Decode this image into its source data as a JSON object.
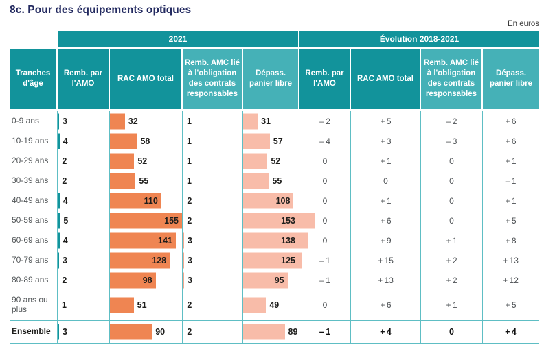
{
  "title": "8c. Pour des équipements optiques",
  "unit_label": "En euros",
  "colors": {
    "header_dark": "#12939b",
    "header_light": "#45b1b7",
    "bar_amo": "#12939b",
    "bar_rac": "#ef8552",
    "bar_amc": "#f3a88f",
    "bar_depass": "#f8bca9",
    "grid": "#5ebec4",
    "title": "#232a60",
    "text": "#1d1d1b",
    "muted": "#54585a"
  },
  "table": {
    "age_column": "Tranches d'âge",
    "groups": [
      "2021",
      "Évolution 2018-2021"
    ],
    "columns": [
      "Remb. par l'AMO",
      "RAC AMO total",
      "Remb. AMC lié à l'obligation des contrats responsables",
      "Dépass. panier libre"
    ]
  },
  "chart_data": {
    "type": "table",
    "title": "8c. Pour des équipements optiques",
    "unit": "En euros",
    "categories": [
      "0-9 ans",
      "10-19 ans",
      "20-29 ans",
      "30-39 ans",
      "40-49 ans",
      "50-59 ans",
      "60-69 ans",
      "70-79 ans",
      "80-89 ans",
      "90 ans ou plus",
      "Ensemble"
    ],
    "column_groups": [
      "2021",
      "Évolution 2018-2021"
    ],
    "series_2021": [
      {
        "name": "Remb. par l'AMO",
        "values": [
          3,
          4,
          2,
          2,
          4,
          5,
          4,
          3,
          2,
          1,
          3
        ]
      },
      {
        "name": "RAC AMO total",
        "values": [
          32,
          58,
          52,
          55,
          110,
          155,
          141,
          128,
          98,
          51,
          90
        ]
      },
      {
        "name": "Remb. AMC lié à l'obligation des contrats responsables",
        "values": [
          1,
          1,
          1,
          1,
          2,
          2,
          3,
          3,
          3,
          2,
          2
        ]
      },
      {
        "name": "Dépass. panier libre",
        "values": [
          31,
          57,
          52,
          55,
          108,
          153,
          138,
          125,
          95,
          49,
          89
        ]
      }
    ],
    "series_evolution": [
      {
        "name": "Remb. par l'AMO",
        "values": [
          -2,
          -4,
          0,
          0,
          0,
          0,
          0,
          -1,
          -1,
          0,
          -1
        ]
      },
      {
        "name": "RAC AMO total",
        "values": [
          5,
          3,
          1,
          0,
          1,
          6,
          9,
          15,
          13,
          6,
          4
        ]
      },
      {
        "name": "Remb. AMC lié à l'obligation des contrats responsables",
        "values": [
          -2,
          -3,
          0,
          0,
          0,
          0,
          1,
          2,
          2,
          1,
          0
        ]
      },
      {
        "name": "Dépass. panier libre",
        "values": [
          6,
          6,
          1,
          -1,
          1,
          5,
          8,
          13,
          12,
          5,
          4
        ]
      }
    ]
  }
}
